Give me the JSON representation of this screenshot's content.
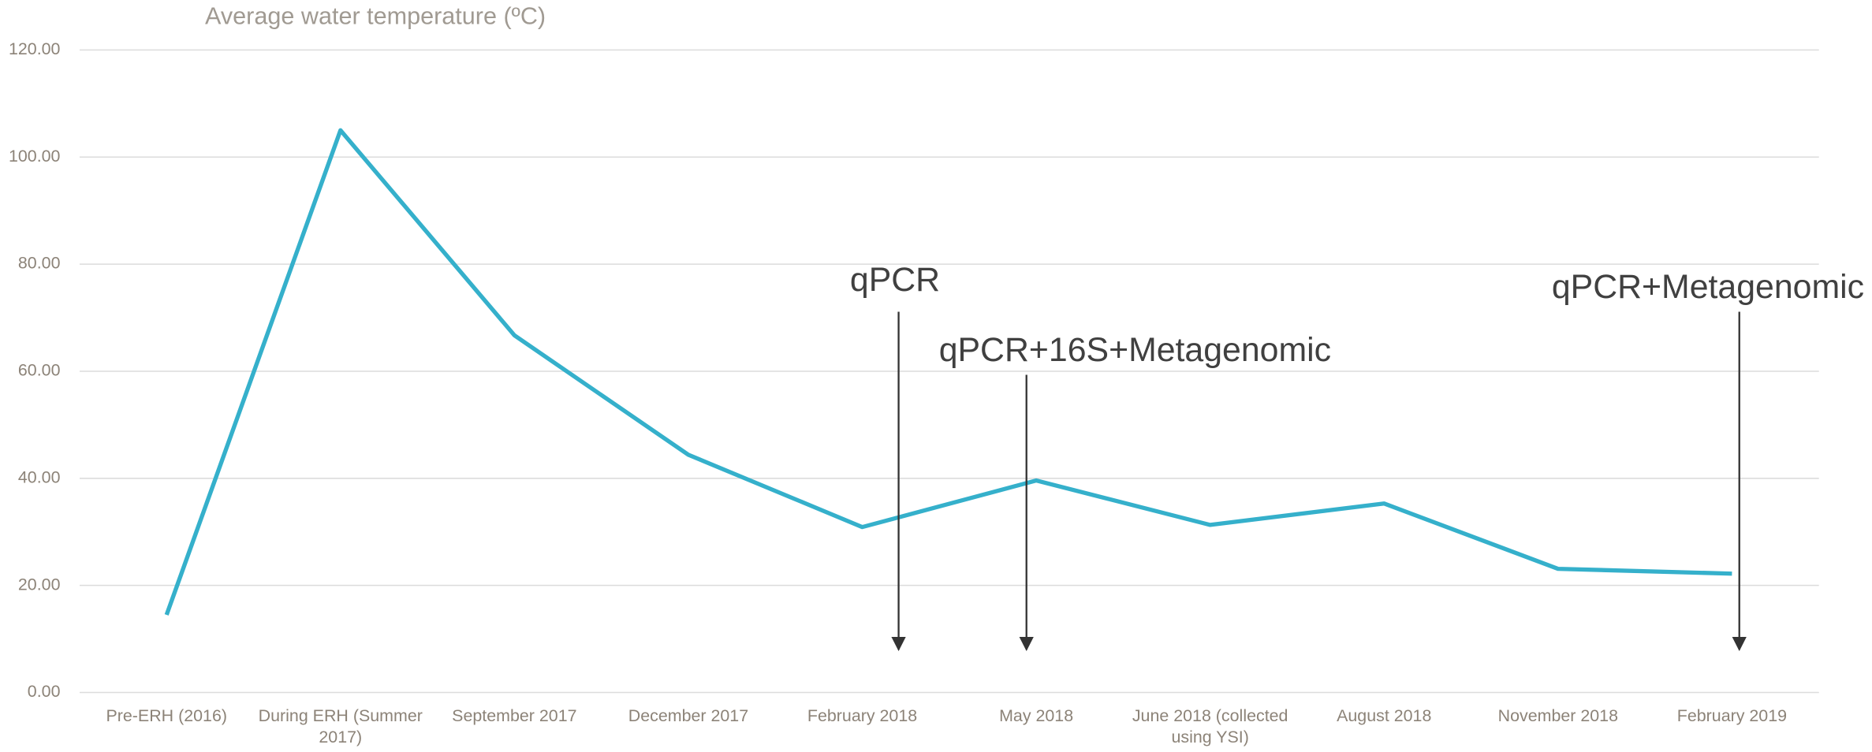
{
  "chart_data": {
    "type": "line",
    "title": "Average water temperature (ºC)",
    "categories": [
      "Pre-ERH (2016)",
      "During ERH (Summer 2017)",
      "September 2017",
      "December 2017",
      "February 2018",
      "May 2018",
      "June 2018 (collected using YSI)",
      "August 2018",
      "November 2018",
      "February 2019"
    ],
    "series": [
      {
        "name": "Average water temperature",
        "color": "#35b0cb",
        "values": [
          14.5,
          105,
          66.7,
          44.4,
          30.9,
          39.6,
          31.3,
          35.3,
          23.1,
          22.2
        ]
      }
    ],
    "ylim": [
      0,
      120
    ],
    "yticks": [
      {
        "value": 0,
        "label": "0.00"
      },
      {
        "value": 20,
        "label": "20.00"
      },
      {
        "value": 40,
        "label": "40.00"
      },
      {
        "value": 60,
        "label": "60.00"
      },
      {
        "value": 80,
        "label": "80.00"
      },
      {
        "value": 100,
        "label": "100.00"
      },
      {
        "value": 120,
        "label": "120.00"
      }
    ],
    "grid": true,
    "annotations": [
      "qPCR",
      "qPCR+16S+Metagenomic",
      "qPCR+Metagenomic"
    ]
  }
}
